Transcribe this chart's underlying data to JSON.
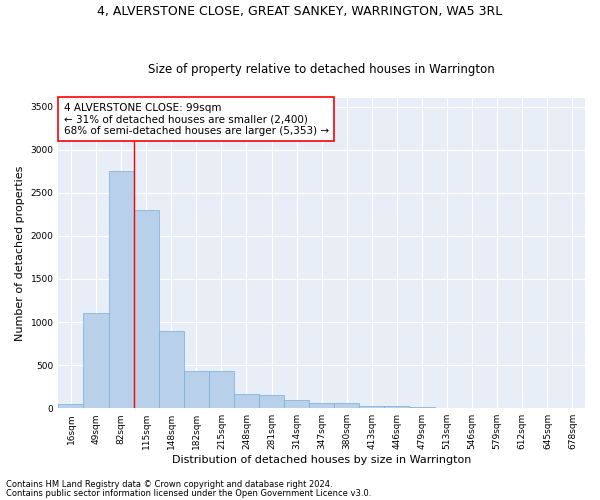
{
  "title": "4, ALVERSTONE CLOSE, GREAT SANKEY, WARRINGTON, WA5 3RL",
  "subtitle": "Size of property relative to detached houses in Warrington",
  "xlabel": "Distribution of detached houses by size in Warrington",
  "ylabel": "Number of detached properties",
  "bar_color": "#b8d0ea",
  "bar_edge_color": "#7aadd4",
  "background_color": "#e8eef8",
  "grid_color": "#ffffff",
  "categories": [
    "16sqm",
    "49sqm",
    "82sqm",
    "115sqm",
    "148sqm",
    "182sqm",
    "215sqm",
    "248sqm",
    "281sqm",
    "314sqm",
    "347sqm",
    "380sqm",
    "413sqm",
    "446sqm",
    "479sqm",
    "513sqm",
    "546sqm",
    "579sqm",
    "612sqm",
    "645sqm",
    "678sqm"
  ],
  "values": [
    50,
    1100,
    2750,
    2300,
    900,
    430,
    430,
    170,
    155,
    100,
    60,
    55,
    30,
    25,
    15,
    8,
    5,
    3,
    1,
    1,
    0
  ],
  "ylim": [
    0,
    3600
  ],
  "yticks": [
    0,
    500,
    1000,
    1500,
    2000,
    2500,
    3000,
    3500
  ],
  "red_line_x": 2.5,
  "annotation_text": "4 ALVERSTONE CLOSE: 99sqm\n← 31% of detached houses are smaller (2,400)\n68% of semi-detached houses are larger (5,353) →",
  "footnote1": "Contains HM Land Registry data © Crown copyright and database right 2024.",
  "footnote2": "Contains public sector information licensed under the Open Government Licence v3.0.",
  "title_fontsize": 9,
  "subtitle_fontsize": 8.5,
  "annot_fontsize": 7.5,
  "xlabel_fontsize": 8,
  "ylabel_fontsize": 8,
  "footnote_fontsize": 6,
  "tick_fontsize": 6.5
}
